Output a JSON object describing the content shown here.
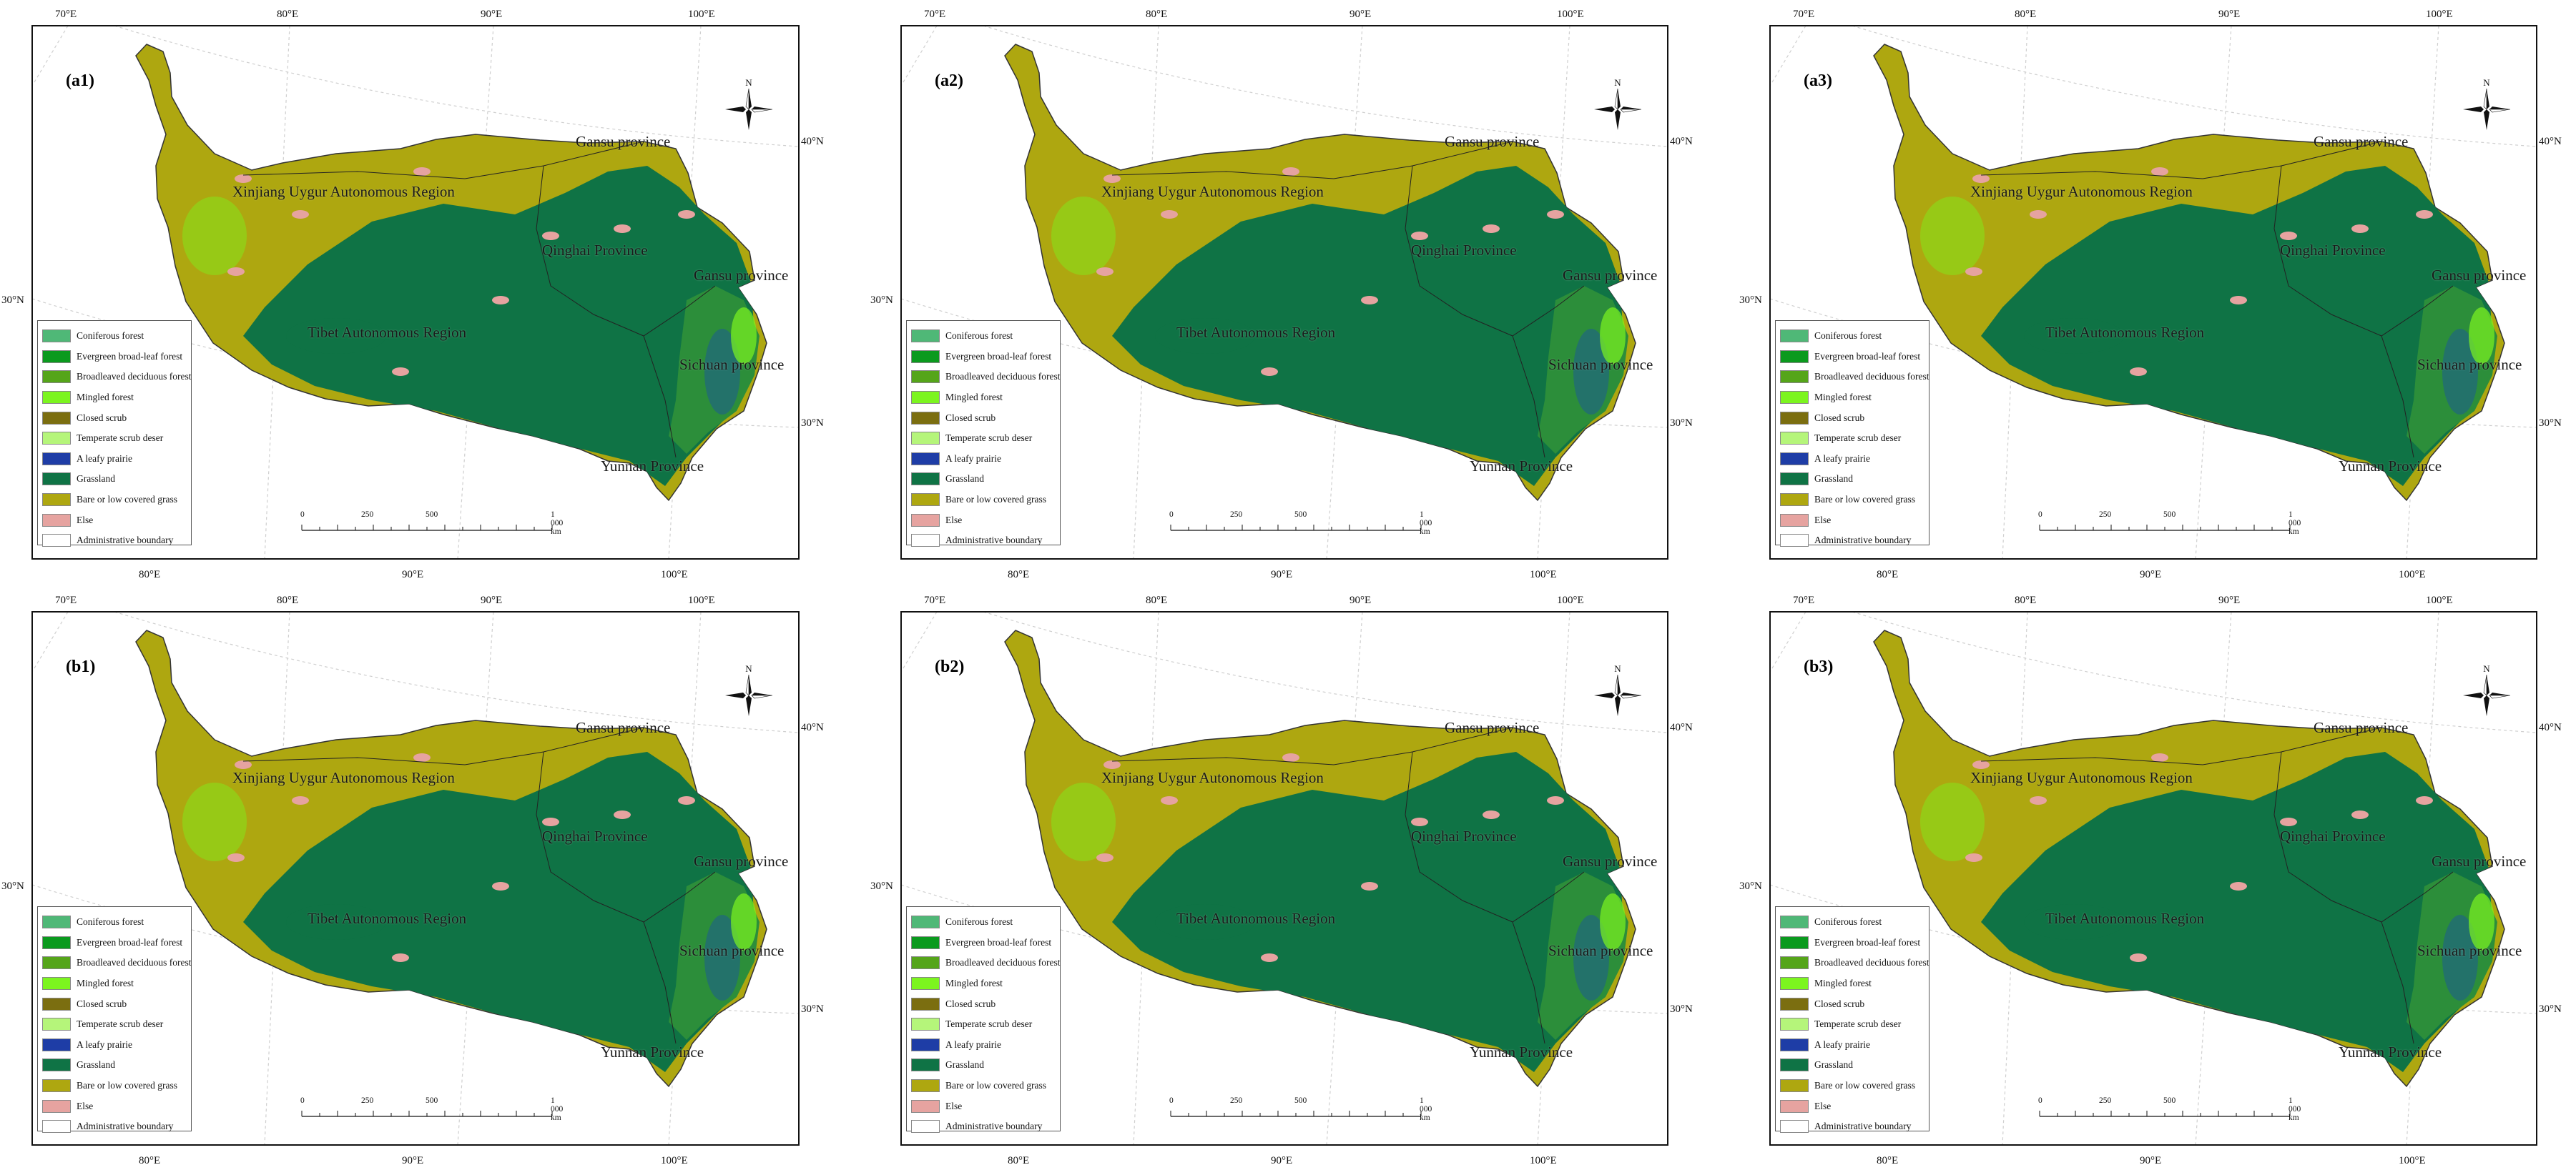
{
  "panels": [
    {
      "label": "(a1)"
    },
    {
      "label": "(a2)"
    },
    {
      "label": "(a3)"
    },
    {
      "label": "(b1)"
    },
    {
      "label": "(b2)"
    },
    {
      "label": "(b3)"
    }
  ],
  "graticule": {
    "top_lon_labels": [
      "70°E",
      "80°E",
      "90°E",
      "100°E"
    ],
    "bottom_lon_labels": [
      "80°E",
      "90°E",
      "100°E"
    ],
    "right_lat_labels": [
      "40°N",
      "30°N"
    ],
    "left_lat_label": "30°N"
  },
  "regions": [
    {
      "name": "Xinjiang Uygur Autonomous Region"
    },
    {
      "name": "Gansu province",
      "id": "gansu-north"
    },
    {
      "name": "Qinghai Province"
    },
    {
      "name": "Gansu province",
      "id": "gansu-east"
    },
    {
      "name": "Tibet Autonomous Region"
    },
    {
      "name": "Sichuan province"
    },
    {
      "name": "Yunnan Province"
    }
  ],
  "legend": [
    {
      "label": "Coniferous forest",
      "color": "#4fb877"
    },
    {
      "label": "Evergreen broad-leaf forest",
      "color": "#0b9a1e"
    },
    {
      "label": "Broadleaved deciduous forest",
      "color": "#55a51a"
    },
    {
      "label": "Mingled forest",
      "color": "#7cf51f"
    },
    {
      "label": "Closed scrub",
      "color": "#7b6e10"
    },
    {
      "label": "Temperate scrub deser",
      "color": "#b5f57a"
    },
    {
      "label": "A leafy prairie",
      "color": "#1e3da6"
    },
    {
      "label": "Grassland",
      "color": "#0f7345"
    },
    {
      "label": "Bare or low covered grass",
      "color": "#aea710"
    },
    {
      "label": "Else",
      "color": "#e6a3a0"
    },
    {
      "label": "Administrative boundary",
      "color": "#ffffff"
    }
  ],
  "scale_bar": {
    "ticks": [
      "0",
      "250",
      "500",
      "1 000 km"
    ]
  },
  "north_arrow": {
    "label": "N"
  }
}
